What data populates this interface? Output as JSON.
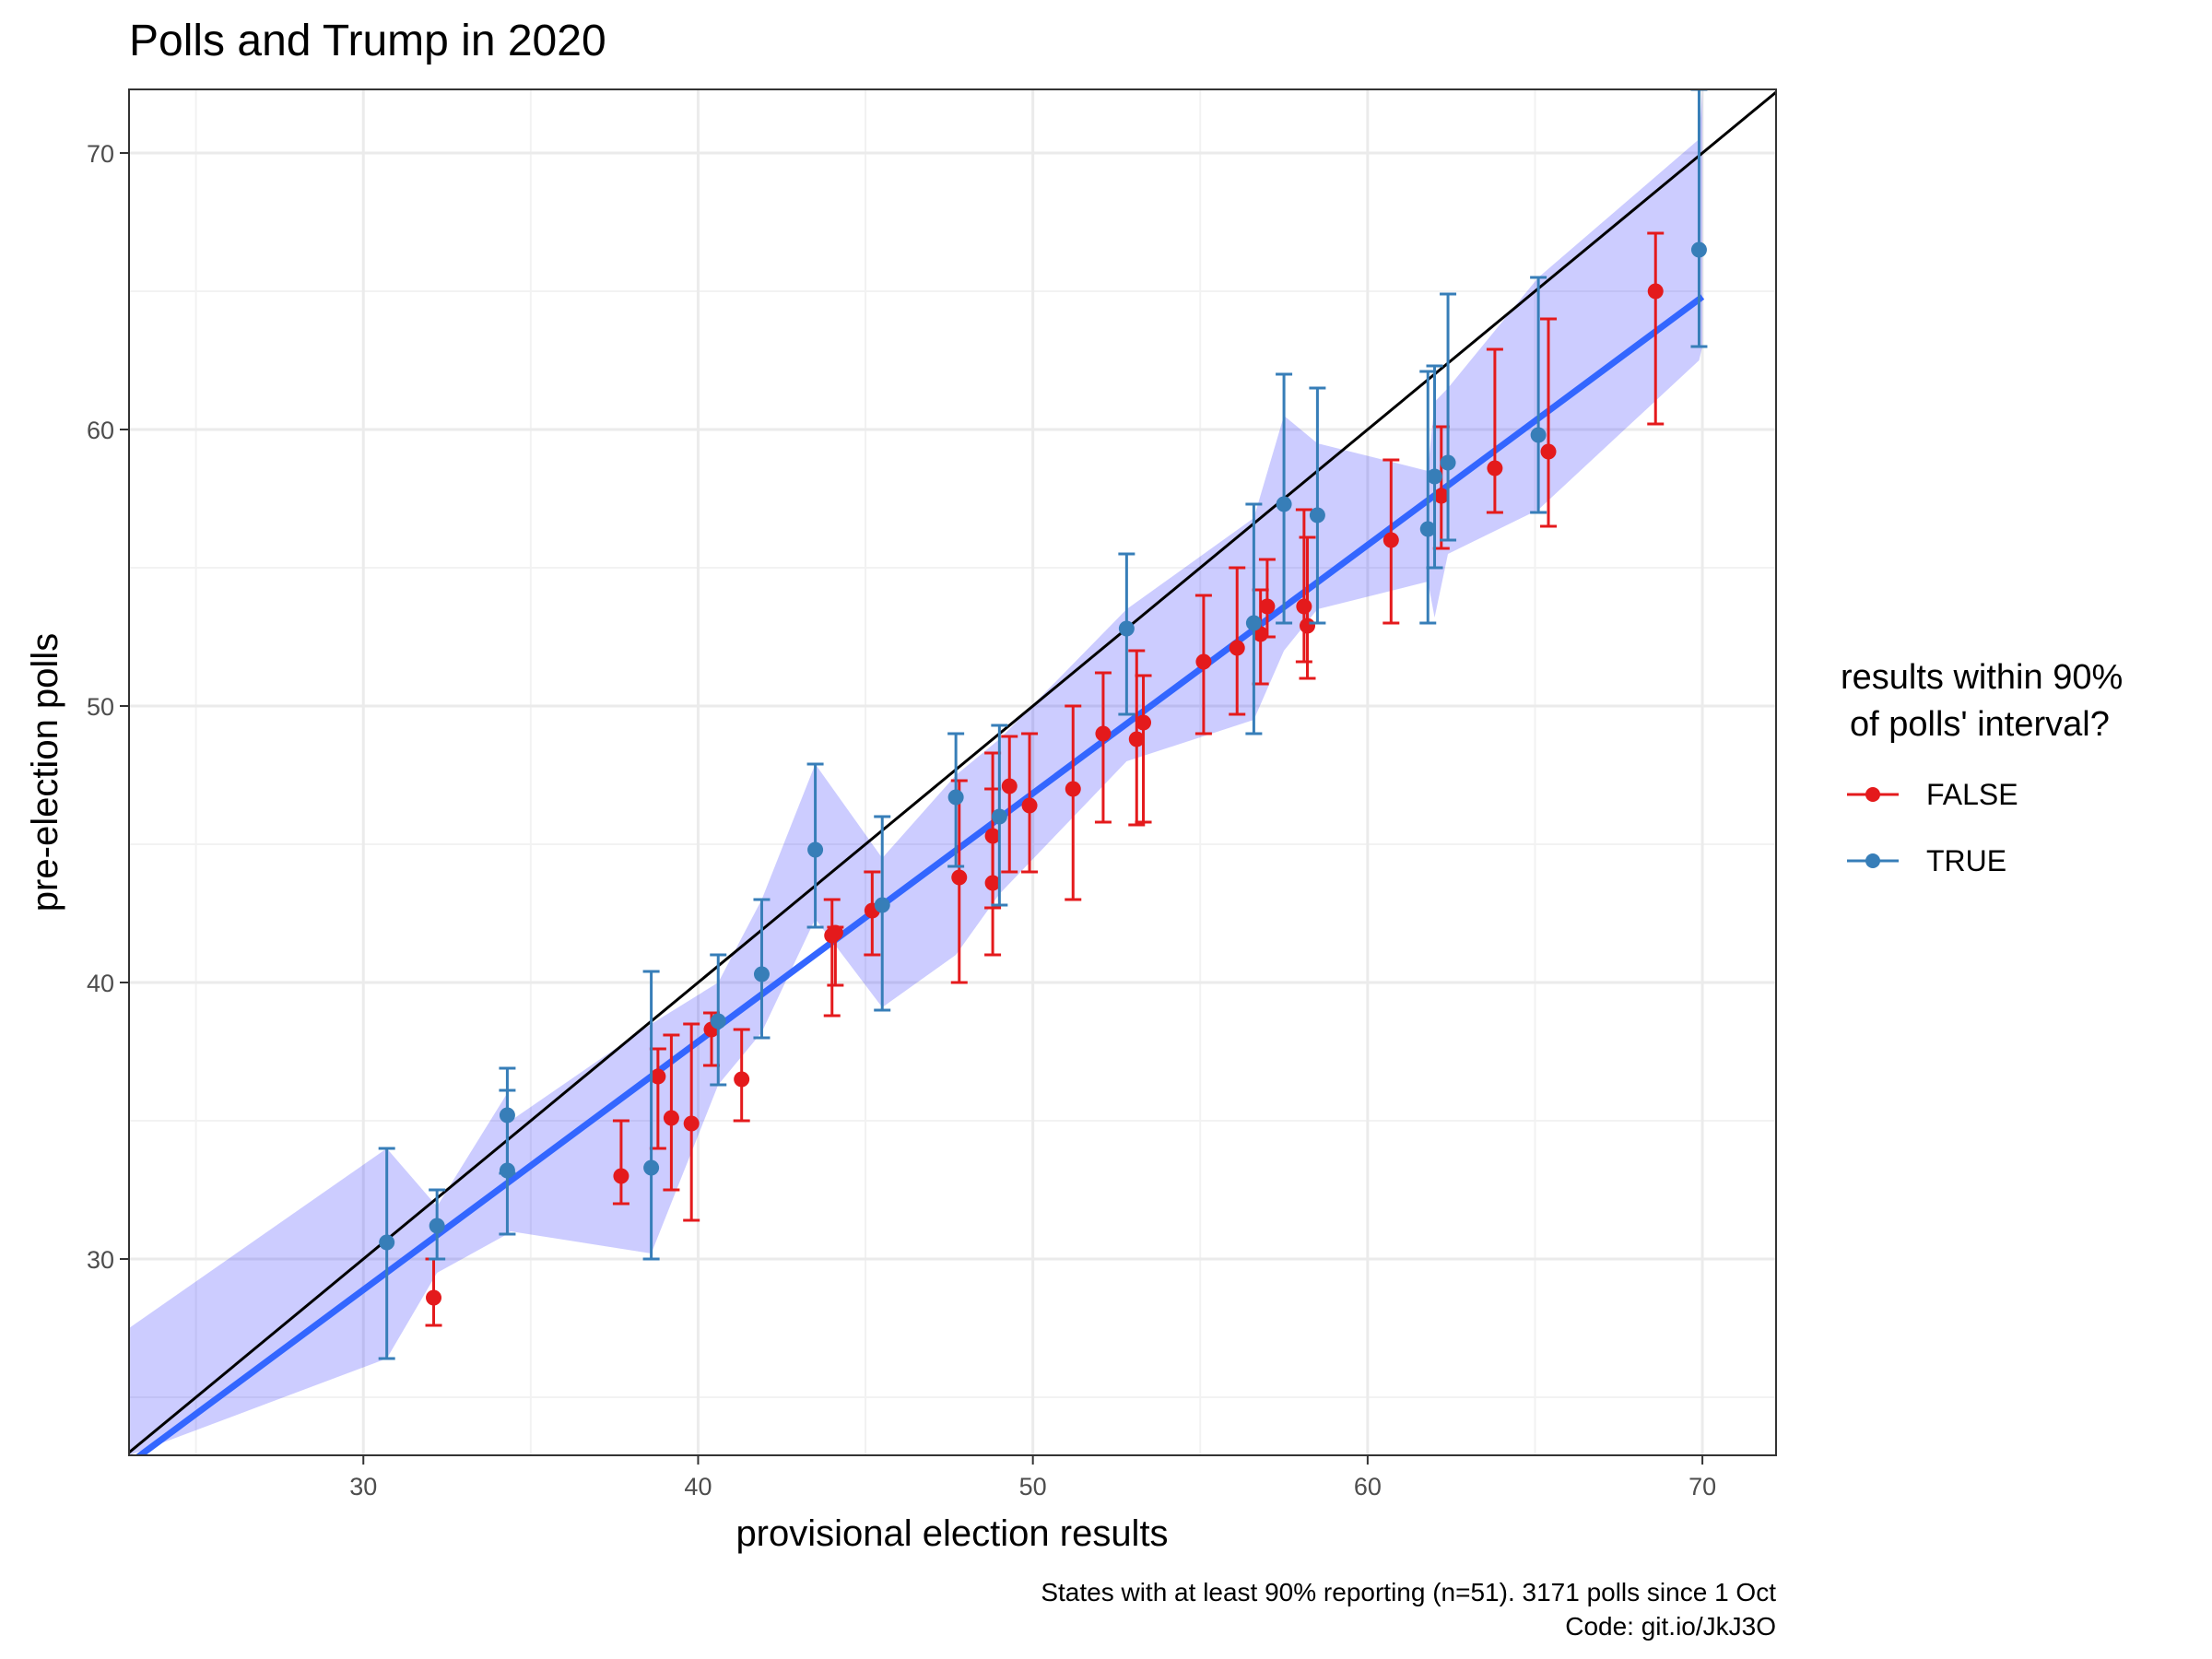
{
  "chart_data": {
    "type": "scatter",
    "title": "Polls and Trump in 2020",
    "xlabel": "provisional election results",
    "ylabel": "pre-election polls",
    "xlim": [
      23,
      72.2
    ],
    "ylim": [
      22.9,
      72.3
    ],
    "xticks": [
      30,
      40,
      50,
      60,
      70
    ],
    "yticks": [
      30,
      40,
      50,
      60,
      70
    ],
    "grid": true,
    "legend": {
      "title_lines": [
        "results within 90%",
        "of polls' interval?"
      ],
      "placement": "right",
      "entries": [
        {
          "label": "FALSE",
          "color": "#E41A1C"
        },
        {
          "label": "TRUE",
          "color": "#377EB8"
        }
      ]
    },
    "caption_lines": [
      "States with at least 90% reporting (n=51). 3171 polls since 1 Oct",
      "Code: git.io/JkJ3O"
    ],
    "reference_line": {
      "slope": 1,
      "intercept": 0,
      "color": "#000000"
    },
    "fit_line": {
      "x": [
        23,
        70
      ],
      "y": [
        22.6,
        64.8
      ],
      "color": "#3366FF"
    },
    "ribbon": {
      "color": "#0000FF",
      "x": [
        23.0,
        30.7,
        32.2,
        34.3,
        34.4,
        38.6,
        40.6,
        41.9,
        43.5,
        45.5,
        47.7,
        49.0,
        52.8,
        56.6,
        57.5,
        58.5,
        61.8,
        62.0,
        62.4,
        65.1,
        69.9,
        70.0
      ],
      "upper": [
        27.5,
        34.0,
        31.9,
        36.0,
        35.0,
        38.5,
        40.0,
        43.0,
        47.9,
        44.5,
        47.5,
        48.8,
        53.5,
        56.8,
        60.5,
        59.5,
        58.5,
        61.0,
        61.5,
        65.5,
        70.5,
        72.3
      ],
      "lower": [
        22.9,
        26.4,
        29.5,
        30.9,
        31.0,
        30.2,
        36.3,
        38.2,
        42.3,
        39.1,
        41.0,
        43.2,
        48.0,
        49.5,
        52.0,
        53.5,
        54.5,
        53.2,
        55.5,
        57.1,
        62.5,
        63.0
      ]
    },
    "series": [
      {
        "name": "FALSE",
        "color": "#E41A1C",
        "points": [
          {
            "x": 32.1,
            "y": 28.6,
            "lo": 27.6,
            "hi": 30.0
          },
          {
            "x": 37.7,
            "y": 33.0,
            "lo": 32.0,
            "hi": 35.0
          },
          {
            "x": 38.8,
            "y": 36.6,
            "lo": 34.0,
            "hi": 37.6
          },
          {
            "x": 39.2,
            "y": 35.1,
            "lo": 32.5,
            "hi": 38.1
          },
          {
            "x": 39.8,
            "y": 34.9,
            "lo": 31.4,
            "hi": 38.5
          },
          {
            "x": 40.4,
            "y": 38.3,
            "lo": 37.0,
            "hi": 38.9
          },
          {
            "x": 41.3,
            "y": 36.5,
            "lo": 35.0,
            "hi": 38.3
          },
          {
            "x": 44.0,
            "y": 41.7,
            "lo": 38.8,
            "hi": 43.0
          },
          {
            "x": 44.1,
            "y": 41.8,
            "lo": 39.9,
            "hi": 42.0
          },
          {
            "x": 45.2,
            "y": 42.6,
            "lo": 41.0,
            "hi": 44.0
          },
          {
            "x": 47.8,
            "y": 43.8,
            "lo": 40.0,
            "hi": 47.3
          },
          {
            "x": 48.8,
            "y": 45.3,
            "lo": 42.7,
            "hi": 48.3
          },
          {
            "x": 48.8,
            "y": 43.6,
            "lo": 41.0,
            "hi": 47.0
          },
          {
            "x": 49.3,
            "y": 47.1,
            "lo": 44.0,
            "hi": 48.9
          },
          {
            "x": 49.9,
            "y": 46.4,
            "lo": 44.0,
            "hi": 49.0
          },
          {
            "x": 51.2,
            "y": 47.0,
            "lo": 43.0,
            "hi": 50.0
          },
          {
            "x": 52.1,
            "y": 49.0,
            "lo": 45.8,
            "hi": 51.2
          },
          {
            "x": 53.1,
            "y": 48.8,
            "lo": 45.7,
            "hi": 52.0
          },
          {
            "x": 53.3,
            "y": 49.4,
            "lo": 45.8,
            "hi": 51.1
          },
          {
            "x": 55.1,
            "y": 51.6,
            "lo": 49.0,
            "hi": 54.0
          },
          {
            "x": 56.1,
            "y": 52.1,
            "lo": 49.7,
            "hi": 55.0
          },
          {
            "x": 56.8,
            "y": 52.6,
            "lo": 50.8,
            "hi": 54.2
          },
          {
            "x": 57.0,
            "y": 53.6,
            "lo": 52.5,
            "hi": 55.3
          },
          {
            "x": 58.1,
            "y": 53.6,
            "lo": 51.6,
            "hi": 57.1
          },
          {
            "x": 58.2,
            "y": 52.9,
            "lo": 51.0,
            "hi": 56.1
          },
          {
            "x": 60.7,
            "y": 56.0,
            "lo": 53.0,
            "hi": 58.9
          },
          {
            "x": 62.2,
            "y": 57.6,
            "lo": 55.7,
            "hi": 60.1
          },
          {
            "x": 63.8,
            "y": 58.6,
            "lo": 57.0,
            "hi": 62.9
          },
          {
            "x": 65.4,
            "y": 59.2,
            "lo": 56.5,
            "hi": 64.0
          },
          {
            "x": 68.6,
            "y": 65.0,
            "lo": 60.2,
            "hi": 67.1
          }
        ]
      },
      {
        "name": "TRUE",
        "color": "#377EB8",
        "points": [
          {
            "x": 30.7,
            "y": 30.6,
            "lo": 26.4,
            "hi": 34.0
          },
          {
            "x": 32.2,
            "y": 31.2,
            "lo": 30.0,
            "hi": 32.5
          },
          {
            "x": 34.3,
            "y": 35.2,
            "lo": 33.1,
            "hi": 36.9
          },
          {
            "x": 34.3,
            "y": 33.2,
            "lo": 30.9,
            "hi": 36.1
          },
          {
            "x": 38.6,
            "y": 33.3,
            "lo": 30.0,
            "hi": 40.4
          },
          {
            "x": 40.6,
            "y": 38.6,
            "lo": 36.3,
            "hi": 41.0
          },
          {
            "x": 41.9,
            "y": 40.3,
            "lo": 38.0,
            "hi": 43.0
          },
          {
            "x": 43.5,
            "y": 44.8,
            "lo": 42.0,
            "hi": 47.9
          },
          {
            "x": 45.5,
            "y": 42.8,
            "lo": 39.0,
            "hi": 46.0
          },
          {
            "x": 47.7,
            "y": 46.7,
            "lo": 44.2,
            "hi": 49.0
          },
          {
            "x": 49.0,
            "y": 46.0,
            "lo": 42.8,
            "hi": 49.3
          },
          {
            "x": 52.8,
            "y": 52.8,
            "lo": 49.7,
            "hi": 55.5
          },
          {
            "x": 56.6,
            "y": 53.0,
            "lo": 49.0,
            "hi": 57.3
          },
          {
            "x": 57.5,
            "y": 57.3,
            "lo": 53.0,
            "hi": 62.0
          },
          {
            "x": 58.5,
            "y": 56.9,
            "lo": 53.0,
            "hi": 61.5
          },
          {
            "x": 61.8,
            "y": 56.4,
            "lo": 53.0,
            "hi": 62.1
          },
          {
            "x": 62.0,
            "y": 58.3,
            "lo": 55.0,
            "hi": 62.3
          },
          {
            "x": 62.4,
            "y": 58.8,
            "lo": 56.0,
            "hi": 64.9
          },
          {
            "x": 65.1,
            "y": 59.8,
            "lo": 57.0,
            "hi": 65.5
          },
          {
            "x": 69.9,
            "y": 66.5,
            "lo": 63.0,
            "hi": 72.3
          }
        ]
      }
    ]
  }
}
